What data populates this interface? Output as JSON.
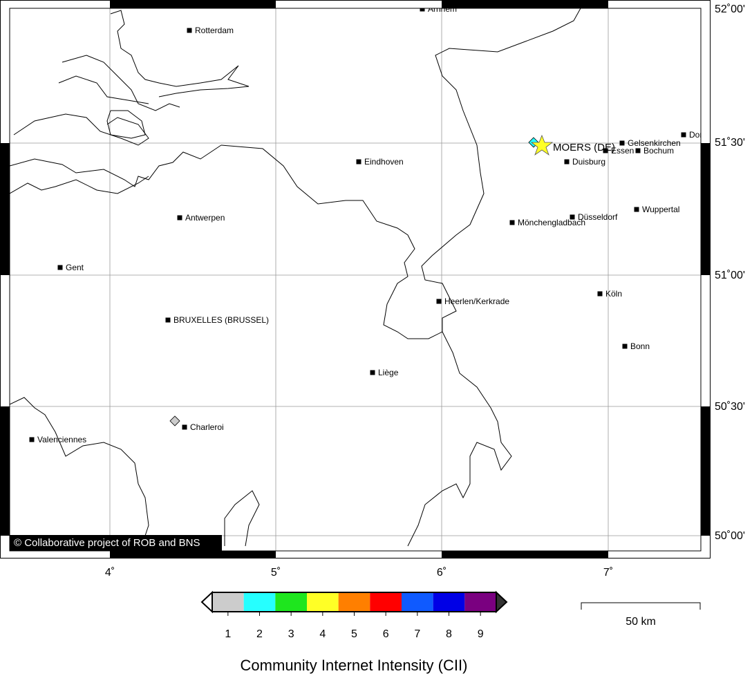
{
  "map": {
    "lon_labels": [
      "4˚",
      "5˚",
      "6˚",
      "7˚"
    ],
    "lat_labels": [
      "52˚00'",
      "51˚30'",
      "51˚00'",
      "50˚30'",
      "50˚00'"
    ],
    "cities": [
      {
        "name": "Arnhem"
      },
      {
        "name": "Rotterdam"
      },
      {
        "name": "Eindhoven"
      },
      {
        "name": "Antwerpen"
      },
      {
        "name": "Gent"
      },
      {
        "name": "BRUXELLES (BRUSSEL)"
      },
      {
        "name": "Liège"
      },
      {
        "name": "Heerlen/Kerkrade"
      },
      {
        "name": "Charleroi"
      },
      {
        "name": "Valenciennes"
      },
      {
        "name": "Mönchengladbach"
      },
      {
        "name": "Düsseldorf"
      },
      {
        "name": "Duisburg"
      },
      {
        "name": "Essen"
      },
      {
        "name": "Bochum"
      },
      {
        "name": "Gelsenkirchen"
      },
      {
        "name": "Dortmund"
      },
      {
        "name": "Wuppertal"
      },
      {
        "name": "Köln"
      },
      {
        "name": "Bonn"
      }
    ],
    "event_label": "MOERS (DE)",
    "copyright": "© Collaborative project of ROB and BNS",
    "colorbar": {
      "title": "Community Internet Intensity (CII)",
      "ticks": [
        "1",
        "2",
        "3",
        "4",
        "5",
        "6",
        "7",
        "8",
        "9"
      ],
      "colors": [
        "#cccccc",
        "#26ffff",
        "#1ee61e",
        "#ffff26",
        "#ff7f00",
        "#ff0000",
        "#0f5aff",
        "#0000e6",
        "#7a0080"
      ]
    },
    "scale_label": "50 km"
  }
}
